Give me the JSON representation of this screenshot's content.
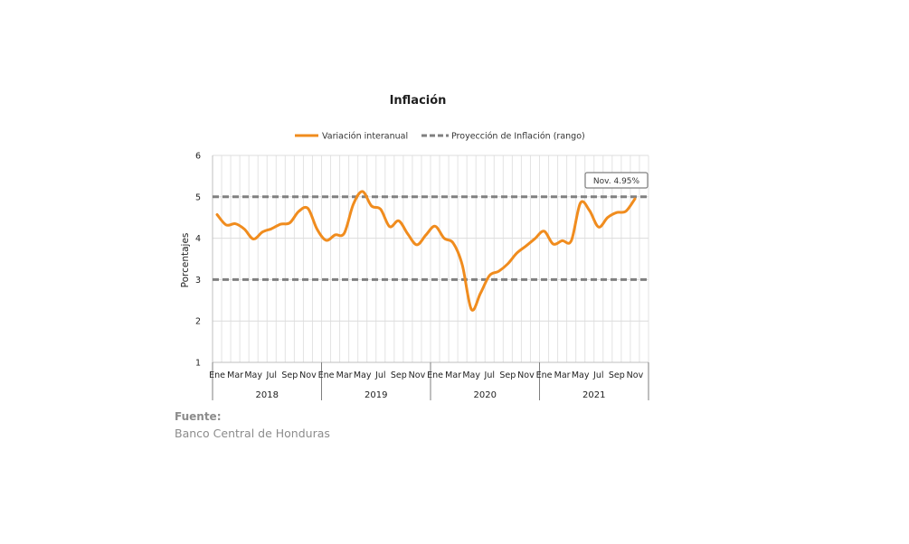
{
  "chart_data": {
    "type": "line",
    "title": "Inflación",
    "ylabel": "Porcentajes",
    "ylim": [
      1,
      6
    ],
    "yticks": [
      1,
      2,
      3,
      4,
      5,
      6
    ],
    "month_labels": [
      "Ene",
      "Mar",
      "May",
      "Jul",
      "Sep",
      "Nov"
    ],
    "years": [
      "2018",
      "2019",
      "2020",
      "2021"
    ],
    "grid": true,
    "legend_position": "top",
    "series": [
      {
        "name": "Variación interanual",
        "color": "#f08c1e",
        "style": "solid",
        "values": [
          4.57,
          4.32,
          4.35,
          4.22,
          3.98,
          4.15,
          4.23,
          4.34,
          4.37,
          4.65,
          4.72,
          4.22,
          3.95,
          4.08,
          4.12,
          4.82,
          5.13,
          4.78,
          4.7,
          4.28,
          4.42,
          4.1,
          3.84,
          4.08,
          4.29,
          4.0,
          3.88,
          3.35,
          2.28,
          2.67,
          3.1,
          3.2,
          3.38,
          3.64,
          3.81,
          3.99,
          4.17,
          3.86,
          3.94,
          3.94,
          4.85,
          4.67,
          4.27,
          4.5,
          4.62,
          4.65,
          4.95
        ]
      },
      {
        "name": "Proyección de Inflación (rango)",
        "color": "#808080",
        "style": "dashed",
        "bounds": [
          3,
          5
        ]
      }
    ],
    "annotations": [
      {
        "text": "Nov. 4.95%"
      }
    ]
  },
  "source": {
    "label": "Fuente:",
    "text": "Banco Central de Honduras"
  }
}
